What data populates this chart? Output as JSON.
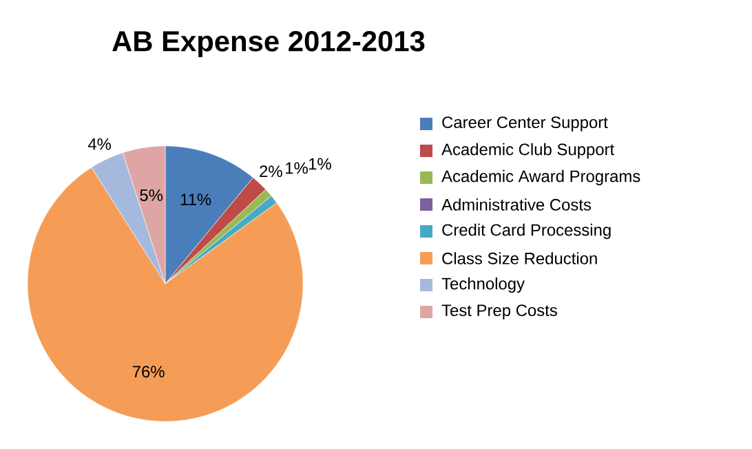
{
  "chart_data": {
    "type": "pie",
    "title": "AB Expense 2012-2013",
    "categories": [
      "Career Center Support",
      "Academic Club Support",
      "Academic Award Programs",
      "Administrative Costs",
      "Credit Card Processing",
      "Class Size Reduction",
      "Technology",
      "Test Prep Costs"
    ],
    "values": [
      11,
      2,
      1,
      0,
      1,
      76,
      4,
      5
    ],
    "value_labels": [
      "11%",
      "2%",
      "1%",
      null,
      "1%",
      "76%",
      "4%",
      "5%"
    ],
    "colors": [
      "#4a7ebb",
      "#be4b48",
      "#98b954",
      "#7d60a0",
      "#46aac5",
      "#f59d56",
      "#a5b9dc",
      "#dfa5a4"
    ],
    "legend": "right"
  }
}
